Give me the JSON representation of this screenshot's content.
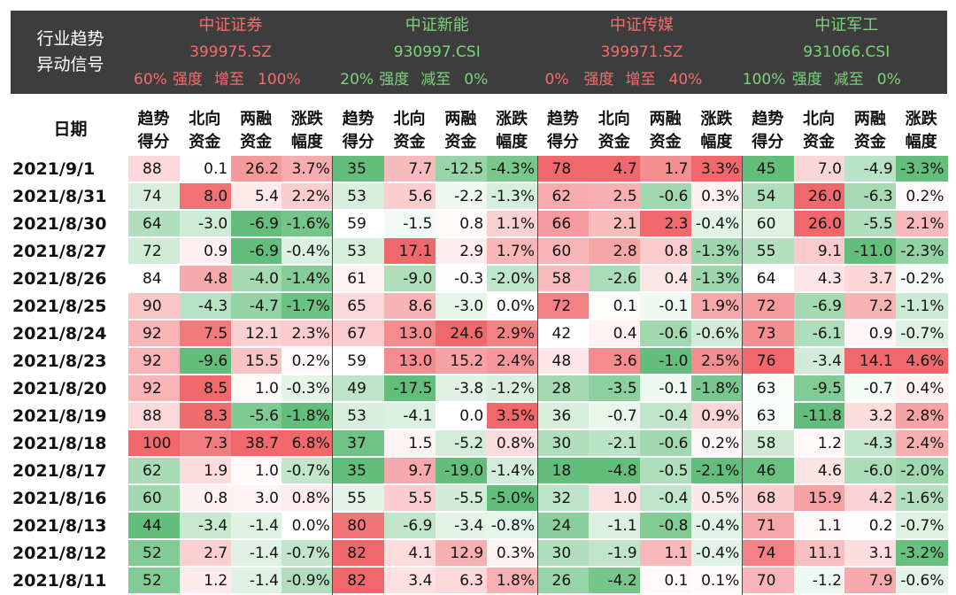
{
  "header": {
    "title_line1": "行业趋势",
    "title_line2": "异动信号",
    "indices": [
      {
        "name": "中证证券",
        "code": "399975.SZ",
        "from": "60%",
        "label1": "强度",
        "label2": "增至",
        "to": "100%",
        "tone": "red"
      },
      {
        "name": "中证新能",
        "code": "930997.CSI",
        "from": "20%",
        "label1": "强度",
        "label2": "减至",
        "to": "0%",
        "tone": "green"
      },
      {
        "name": "中证传媒",
        "code": "399971.SZ",
        "from": "0%",
        "label1": "强度",
        "label2": "增至",
        "to": "40%",
        "tone": "red"
      },
      {
        "name": "中证军工",
        "code": "931066.CSI",
        "from": "100%",
        "label1": "强度",
        "label2": "减至",
        "to": "0%",
        "tone": "green"
      }
    ]
  },
  "columns": {
    "date_label": "日期",
    "metrics": [
      {
        "l1": "趋势",
        "l2": "得分"
      },
      {
        "l1": "北向",
        "l2": "资金"
      },
      {
        "l1": "两融",
        "l2": "资金"
      },
      {
        "l1": "涨跌",
        "l2": "幅度"
      }
    ]
  },
  "rows": [
    {
      "date": "2021/9/1",
      "values": [
        "88",
        "0.1",
        "26.2",
        "3.7%",
        "35",
        "7.7",
        "-12.5",
        "-4.3%",
        "78",
        "4.7",
        "1.7",
        "3.3%",
        "45",
        "7.0",
        "-4.9",
        "-3.3%"
      ]
    },
    {
      "date": "2021/8/31",
      "values": [
        "74",
        "8.0",
        "5.4",
        "2.2%",
        "53",
        "5.6",
        "-2.2",
        "-1.3%",
        "62",
        "2.5",
        "-0.6",
        "0.3%",
        "54",
        "26.0",
        "-6.3",
        "0.2%"
      ]
    },
    {
      "date": "2021/8/30",
      "values": [
        "64",
        "-3.0",
        "-6.9",
        "-1.6%",
        "59",
        "-1.5",
        "0.8",
        "1.1%",
        "66",
        "2.1",
        "2.3",
        "-0.4%",
        "60",
        "26.0",
        "-5.5",
        "2.1%"
      ]
    },
    {
      "date": "2021/8/27",
      "values": [
        "72",
        "0.9",
        "-6.9",
        "-0.4%",
        "53",
        "17.1",
        "2.9",
        "1.7%",
        "60",
        "2.8",
        "0.8",
        "-1.3%",
        "55",
        "9.1",
        "-11.0",
        "-2.3%"
      ]
    },
    {
      "date": "2021/8/26",
      "values": [
        "84",
        "4.8",
        "-4.0",
        "-1.4%",
        "61",
        "-9.0",
        "-0.3",
        "-2.0%",
        "58",
        "-2.6",
        "0.4",
        "-1.3%",
        "64",
        "4.3",
        "3.7",
        "-0.2%"
      ]
    },
    {
      "date": "2021/8/25",
      "values": [
        "90",
        "-4.3",
        "-4.7",
        "-1.7%",
        "65",
        "8.6",
        "-3.0",
        "0.0%",
        "72",
        "0.1",
        "-0.1",
        "1.9%",
        "72",
        "-6.9",
        "7.2",
        "-1.1%"
      ]
    },
    {
      "date": "2021/8/24",
      "values": [
        "92",
        "7.5",
        "12.1",
        "2.3%",
        "67",
        "13.0",
        "24.6",
        "2.9%",
        "42",
        "0.4",
        "-0.6",
        "-0.6%",
        "73",
        "-6.1",
        "0.9",
        "-0.7%"
      ]
    },
    {
      "date": "2021/8/23",
      "values": [
        "92",
        "-9.6",
        "15.5",
        "0.2%",
        "59",
        "13.0",
        "15.2",
        "2.4%",
        "48",
        "3.6",
        "-1.0",
        "2.5%",
        "76",
        "-3.4",
        "14.1",
        "4.6%"
      ]
    },
    {
      "date": "2021/8/20",
      "values": [
        "92",
        "8.5",
        "1.0",
        "-0.3%",
        "49",
        "-17.5",
        "-3.8",
        "-1.2%",
        "28",
        "-3.5",
        "-0.1",
        "-1.8%",
        "63",
        "-9.5",
        "-0.7",
        "0.4%"
      ]
    },
    {
      "date": "2021/8/19",
      "values": [
        "88",
        "8.3",
        "-5.6",
        "-1.8%",
        "53",
        "-4.1",
        "0.0",
        "3.5%",
        "36",
        "-0.7",
        "-0.4",
        "0.9%",
        "63",
        "-11.8",
        "3.2",
        "2.8%"
      ]
    },
    {
      "date": "2021/8/18",
      "values": [
        "100",
        "7.3",
        "38.7",
        "6.8%",
        "37",
        "1.5",
        "-5.2",
        "0.8%",
        "30",
        "-2.1",
        "-0.6",
        "0.2%",
        "58",
        "1.2",
        "-4.3",
        "2.4%"
      ]
    },
    {
      "date": "2021/8/17",
      "values": [
        "62",
        "1.9",
        "1.0",
        "-0.7%",
        "35",
        "9.7",
        "-19.0",
        "-1.4%",
        "18",
        "-4.8",
        "-0.5",
        "-2.1%",
        "46",
        "4.6",
        "-6.0",
        "-2.0%"
      ]
    },
    {
      "date": "2021/8/16",
      "values": [
        "60",
        "0.8",
        "3.0",
        "0.8%",
        "55",
        "5.5",
        "-5.5",
        "-5.0%",
        "32",
        "1.0",
        "-0.4",
        "0.5%",
        "68",
        "15.9",
        "4.2",
        "-1.6%"
      ]
    },
    {
      "date": "2021/8/13",
      "values": [
        "44",
        "-3.4",
        "-1.4",
        "0.0%",
        "80",
        "-6.9",
        "-3.4",
        "-0.8%",
        "24",
        "-1.1",
        "-0.8",
        "-0.4%",
        "71",
        "1.1",
        "0.2",
        "-0.7%"
      ]
    },
    {
      "date": "2021/8/12",
      "values": [
        "52",
        "2.7",
        "-1.4",
        "-0.7%",
        "82",
        "4.1",
        "12.9",
        "0.3%",
        "30",
        "-1.9",
        "1.1",
        "-0.4%",
        "74",
        "11.1",
        "3.1",
        "-3.2%"
      ]
    },
    {
      "date": "2021/8/11",
      "values": [
        "52",
        "1.2",
        "-1.4",
        "-0.9%",
        "82",
        "3.4",
        "6.3",
        "1.8%",
        "26",
        "-4.2",
        "0.1",
        "0.1%",
        "70",
        "-1.2",
        "7.9",
        "-0.6%"
      ]
    }
  ]
}
